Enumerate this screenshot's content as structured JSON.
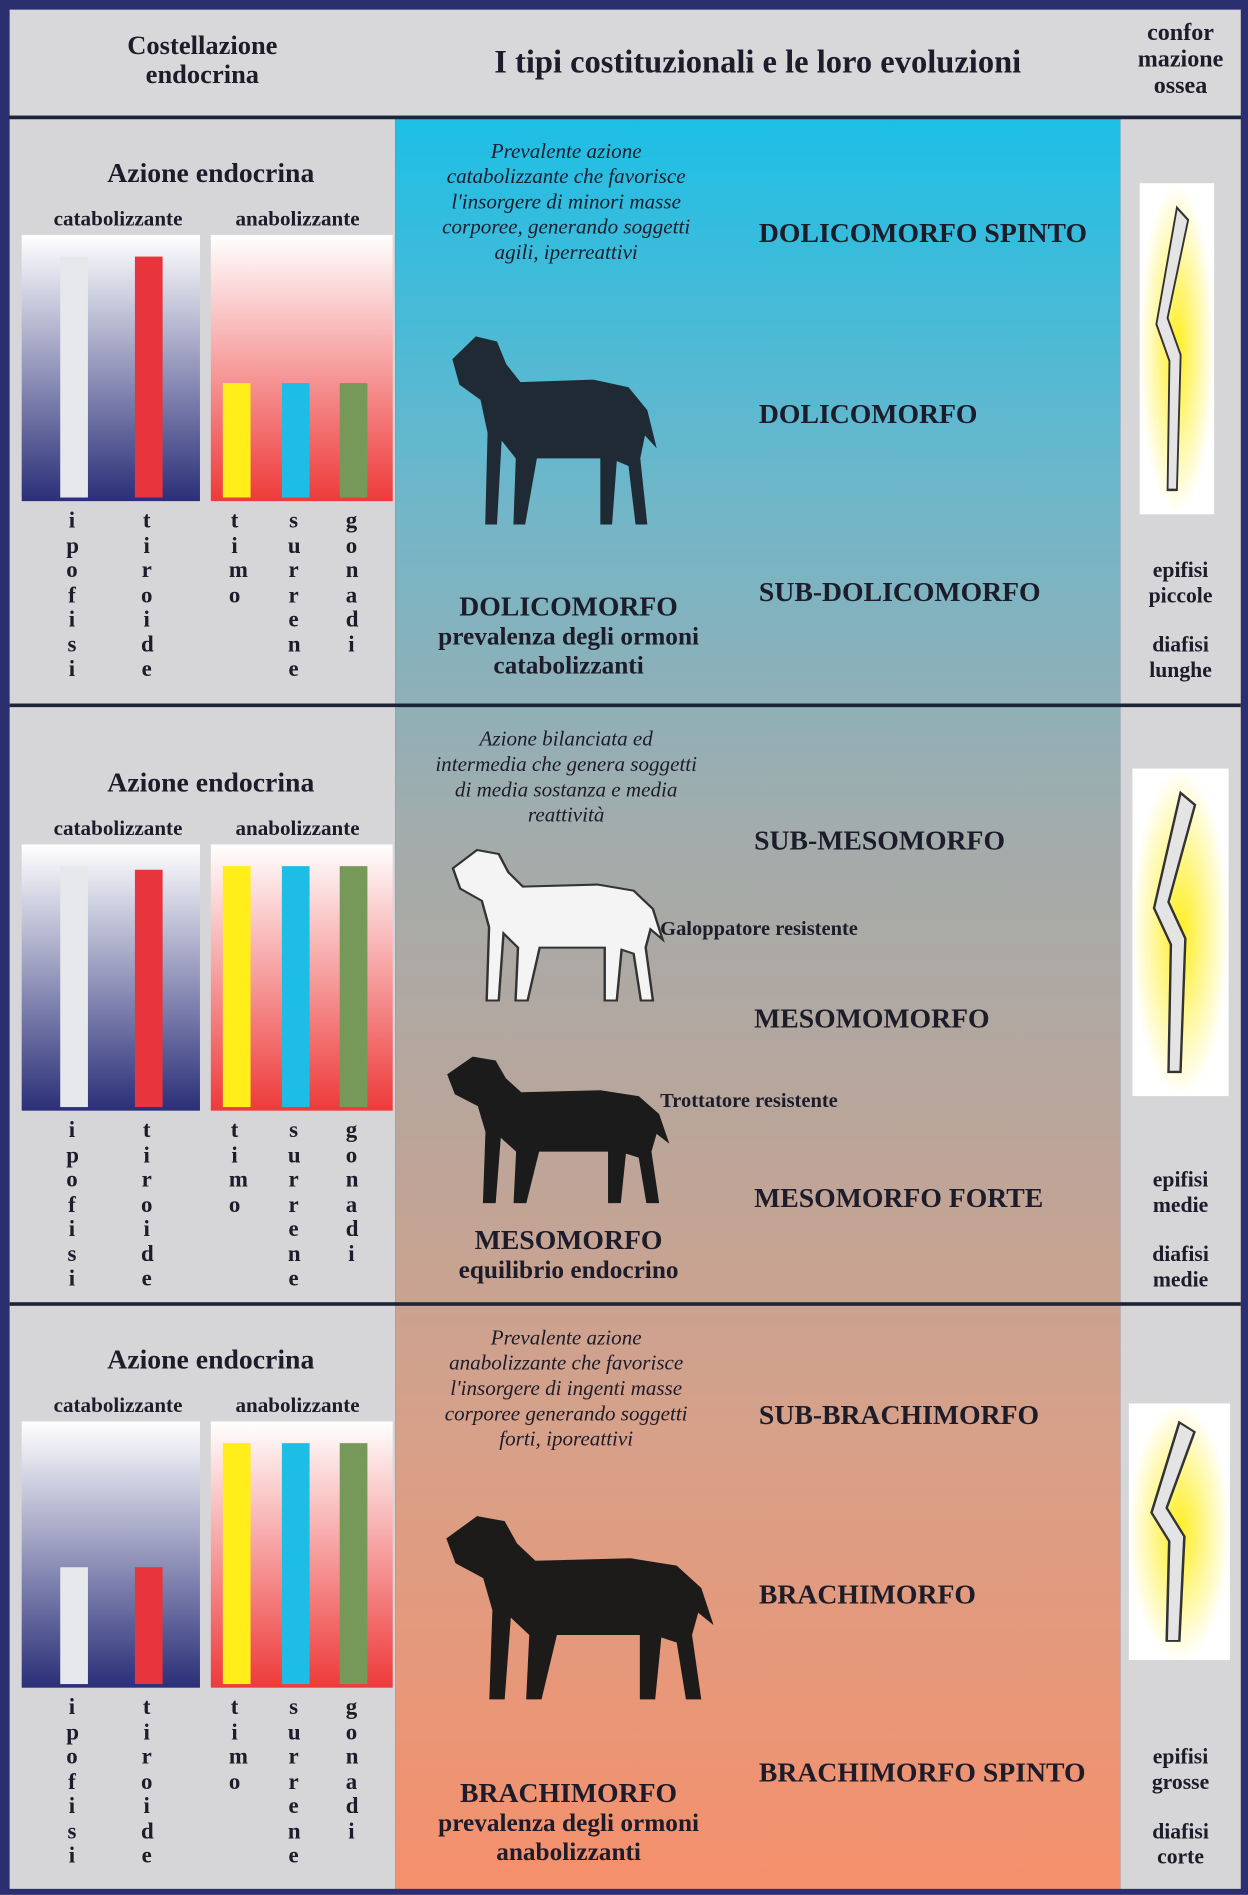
{
  "header": {
    "left": "Costellazione endocrina",
    "title": "I tipi costituzionali e le loro evoluzioni",
    "right": [
      "confor",
      "mazione",
      "ossea"
    ]
  },
  "sections": [
    {
      "endocrine": {
        "title": "Azione endocrina",
        "groups": [
          "catabolizzante",
          "anabolizzante"
        ],
        "glands": [
          "ipofisi",
          "tiroide",
          "timo",
          "surrene",
          "gonadi"
        ]
      },
      "description": "Prevalente azione catabolizzante che favorisce l'insorgere di minori masse corporee, generando soggetti agili, iperreattivi",
      "types": [
        "DOLICOMORFO SPINTO",
        "DOLICOMORFO",
        "SUB-DOLICOMORFO"
      ],
      "summary": {
        "name": "DOLICOMORFO",
        "text": "prevalenza degli ormoni catabolizzanti"
      },
      "bone": [
        "epifisi piccole",
        "diafisi lunghe"
      ]
    },
    {
      "endocrine": {
        "title": "Azione endocrina",
        "groups": [
          "catabolizzante",
          "anabolizzante"
        ],
        "glands": [
          "ipofisi",
          "tiroide",
          "timo",
          "surrene",
          "gonadi"
        ]
      },
      "description": "Azione bilanciata ed intermedia che genera soggetti di media sostanza e media reattività",
      "types": [
        "SUB-MESOMORFO",
        "MESOMOMORFO",
        "MESOMORFO FORTE"
      ],
      "notes": [
        "Galoppatore resistente",
        "Trottatore resistente"
      ],
      "summary": {
        "name": "MESOMORFO",
        "text": "equilibrio endocrino"
      },
      "bone": [
        "epifisi medie",
        "diafisi medie"
      ]
    },
    {
      "endocrine": {
        "title": "Azione endocrina",
        "groups": [
          "catabolizzante",
          "anabolizzante"
        ],
        "glands": [
          "ipofisi",
          "tiroide",
          "timo",
          "surrene",
          "gonadi"
        ]
      },
      "description": "Prevalente azione anabolizzante che favorisce l'insorgere di ingenti masse corporee generando soggetti forti, iporeattivi",
      "types": [
        "SUB-BRACHIMORFO",
        "BRACHIMORFO",
        "BRACHIMORFO SPINTO"
      ],
      "summary": {
        "name": "BRACHIMORFO",
        "text": "prevalenza degli ormoni anabolizzanti"
      },
      "bone": [
        "epifisi grosse",
        "diafisi corte"
      ]
    }
  ]
}
